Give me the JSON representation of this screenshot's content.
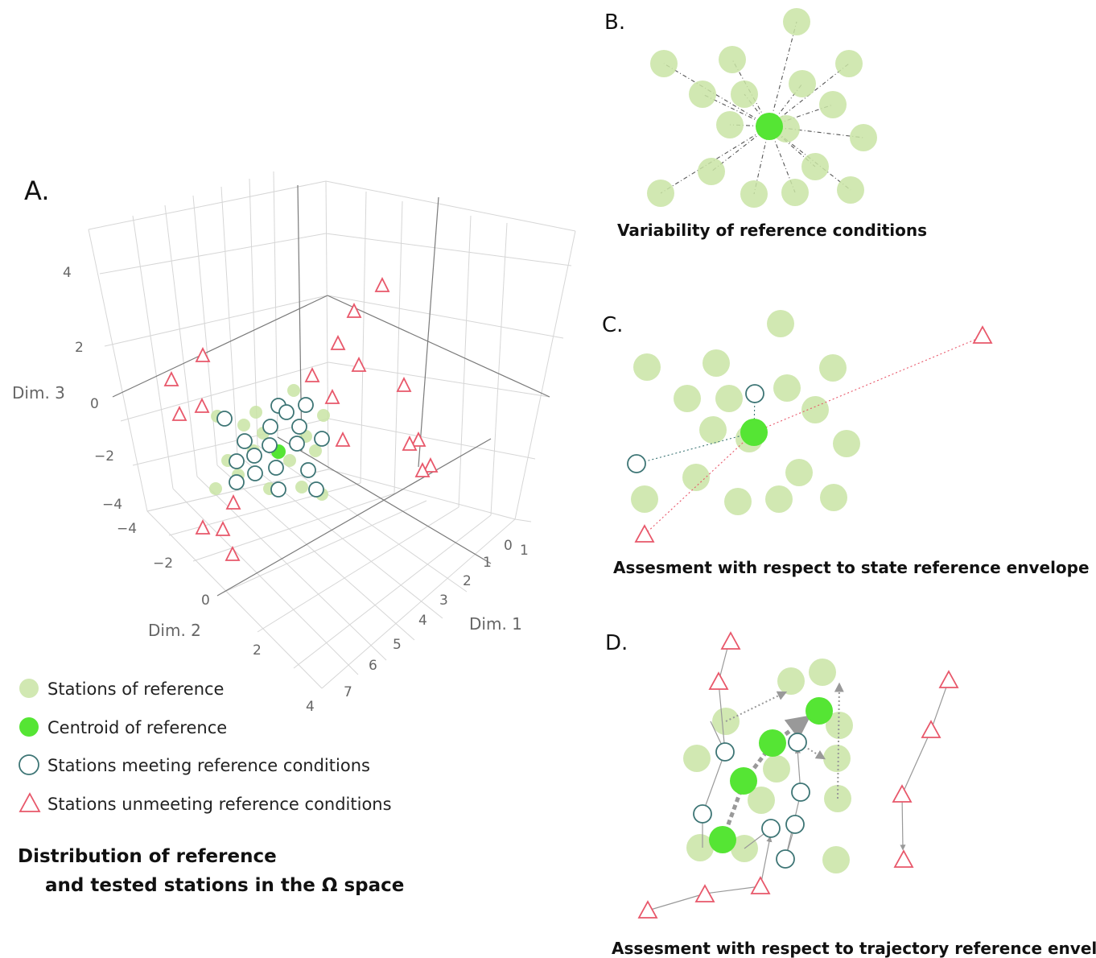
{
  "panel_a": {
    "letter": "A.",
    "axis_dim1": "Dim. 1",
    "axis_dim2": "Dim. 2",
    "axis_dim3": "Dim. 3",
    "ticks_dim3": [
      "4",
      "2",
      "0",
      "−2",
      "−4"
    ],
    "ticks_dim2": [
      "−4",
      "−2",
      "0",
      "2",
      "4"
    ],
    "ticks_dim1": [
      "0",
      "1",
      "1",
      "2",
      "3",
      "4",
      "5",
      "6",
      "7"
    ],
    "legend": [
      {
        "marker": "reference",
        "label": "Stations of reference"
      },
      {
        "marker": "centroid",
        "label": "Centroid of reference"
      },
      {
        "marker": "meeting",
        "label": "Stations meeting reference conditions"
      },
      {
        "marker": "unmeeting",
        "label": "Stations unmeeting reference conditions"
      }
    ],
    "caption_line1": "Distribution of reference",
    "caption_line2": "and tested stations in the Ω space"
  },
  "panel_b": {
    "letter": "B.",
    "caption": "Variability of reference conditions"
  },
  "panel_c": {
    "letter": "C.",
    "caption": "Assesment with respect to state reference envelope"
  },
  "panel_d": {
    "letter": "D.",
    "caption": "Assesment with respect to trajectory reference envelope"
  },
  "colors": {
    "reference": "#c9e4a4",
    "centroid": "#55e534",
    "meeting_stroke": "#3d7575",
    "unmeeting_stroke": "#e8576a"
  }
}
